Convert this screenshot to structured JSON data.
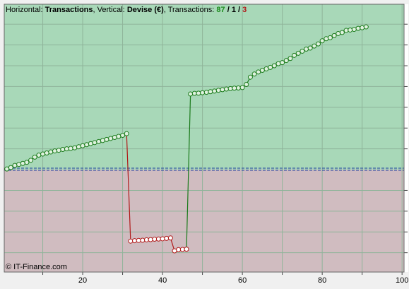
{
  "chart_data": {
    "type": "line",
    "caption": {
      "h_prefix": "Horizontal:",
      "x_label": "Transactions",
      "v_prefix": ", Vertical:",
      "y_label": "Devise (€)",
      "t_prefix": ", Transactions:",
      "wins": 87,
      "sep1": "/",
      "even": 1,
      "sep2": "/",
      "losses": 3
    },
    "watermark": "© IT-Finance.com",
    "x": [
      1,
      2,
      3,
      4,
      5,
      6,
      7,
      8,
      9,
      10,
      11,
      12,
      13,
      14,
      15,
      16,
      17,
      18,
      19,
      20,
      21,
      22,
      23,
      24,
      25,
      26,
      27,
      28,
      29,
      30,
      31,
      32,
      33,
      34,
      35,
      36,
      37,
      38,
      39,
      40,
      41,
      42,
      43,
      44,
      45,
      46,
      47,
      48,
      49,
      50,
      51,
      52,
      53,
      54,
      55,
      56,
      57,
      58,
      59,
      60,
      61,
      62,
      63,
      64,
      65,
      66,
      67,
      68,
      69,
      70,
      71,
      72,
      73,
      74,
      75,
      76,
      77,
      78,
      79,
      80,
      81,
      82,
      83,
      84,
      85,
      86,
      87,
      88,
      89,
      90,
      91
    ],
    "values": [
      0.03,
      0.1,
      0.2,
      0.25,
      0.3,
      0.35,
      0.45,
      0.6,
      0.7,
      0.75,
      0.8,
      0.85,
      0.9,
      0.93,
      0.97,
      1.0,
      1.02,
      1.05,
      1.1,
      1.15,
      1.2,
      1.25,
      1.3,
      1.35,
      1.4,
      1.45,
      1.5,
      1.55,
      1.6,
      1.65,
      1.73,
      -3.44,
      -3.42,
      -3.41,
      -3.4,
      -3.38,
      -3.37,
      -3.35,
      -3.34,
      -3.33,
      -3.31,
      -3.29,
      -3.91,
      -3.85,
      -3.84,
      -3.83,
      3.64,
      3.67,
      3.68,
      3.7,
      3.72,
      3.75,
      3.78,
      3.82,
      3.85,
      3.88,
      3.9,
      3.92,
      3.93,
      3.95,
      4.1,
      4.45,
      4.6,
      4.7,
      4.78,
      4.85,
      4.92,
      5.0,
      5.1,
      5.15,
      5.25,
      5.35,
      5.5,
      5.6,
      5.7,
      5.8,
      5.85,
      5.95,
      6.05,
      6.2,
      6.3,
      6.35,
      6.45,
      6.55,
      6.6,
      6.7,
      6.72,
      6.75,
      6.8,
      6.83,
      6.87
    ],
    "up_color": "#1a7a1a",
    "down_color": "#b01818",
    "xlim": [
      0.35,
      100.5
    ],
    "ylim": [
      -4.93,
      7.96
    ],
    "xticks": [
      20,
      40,
      60,
      80,
      100
    ],
    "xminor": [
      10,
      30,
      50,
      70,
      90
    ],
    "ygrid": [
      -4,
      -3,
      -2,
      -1,
      1,
      2,
      3,
      4,
      5,
      6,
      7
    ],
    "zero": 0,
    "grid": true
  }
}
